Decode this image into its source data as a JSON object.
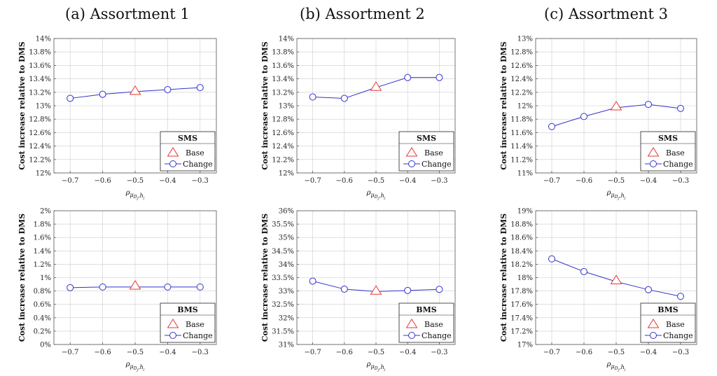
{
  "titles": [
    "(a) Assortment 1",
    "(b) Assortment 2",
    "(c) Assortment 3"
  ],
  "colors": {
    "base": "#e53935",
    "change": "#3333cc",
    "grid": "#cccccc",
    "axis": "#555555"
  },
  "chart_data": [
    {
      "type": "line",
      "panel": "a-top",
      "ylabel": "Cost increase relative to DMS",
      "xlabel": "ρ_{μ_{D_j},h_j}",
      "x": [
        -0.7,
        -0.6,
        -0.5,
        -0.4,
        -0.3
      ],
      "xticks": [
        "−0.7",
        "−0.6",
        "−0.5",
        "−0.4",
        "−0.3"
      ],
      "ylim": [
        12,
        14
      ],
      "yticks": [
        "12%",
        "12.2%",
        "12.4%",
        "12.6%",
        "12.8%",
        "13%",
        "13.2%",
        "13.4%",
        "13.6%",
        "13.8%",
        "14%"
      ],
      "grid": true,
      "legend": {
        "title": "SMS",
        "base_label": "Base",
        "change_label": "Change",
        "position": "bottom-right"
      },
      "series": [
        {
          "name": "Change",
          "values": [
            13.11,
            13.17,
            13.21,
            13.24,
            13.27
          ]
        }
      ],
      "base_point": {
        "x": -0.5,
        "y": 13.22
      }
    },
    {
      "type": "line",
      "panel": "b-top",
      "ylabel": "Cost increase relative to DMS",
      "xlabel": "ρ_{μ_{D_j},h_j}",
      "x": [
        -0.7,
        -0.6,
        -0.5,
        -0.4,
        -0.3
      ],
      "xticks": [
        "−0.7",
        "−0.6",
        "−0.5",
        "−0.4",
        "−0.3"
      ],
      "ylim": [
        12,
        14
      ],
      "yticks": [
        "12%",
        "12.2%",
        "12.4%",
        "12.6%",
        "12.8%",
        "13%",
        "13.2%",
        "13.4%",
        "13.6%",
        "13.8%",
        "14%"
      ],
      "grid": true,
      "legend": {
        "title": "SMS",
        "base_label": "Base",
        "change_label": "Change",
        "position": "bottom-right"
      },
      "series": [
        {
          "name": "Change",
          "values": [
            13.13,
            13.11,
            13.27,
            13.42,
            13.42
          ]
        }
      ],
      "base_point": {
        "x": -0.5,
        "y": 13.28
      }
    },
    {
      "type": "line",
      "panel": "c-top",
      "ylabel": "Cost increase relative to DMS",
      "xlabel": "ρ_{μ_{D_j},h_j}",
      "x": [
        -0.7,
        -0.6,
        -0.5,
        -0.4,
        -0.3
      ],
      "xticks": [
        "−0.7",
        "−0.6",
        "−0.5",
        "−0.4",
        "−0.3"
      ],
      "ylim": [
        11,
        13
      ],
      "yticks": [
        "11%",
        "11.2%",
        "11.4%",
        "11.6%",
        "11.8%",
        "12%",
        "12.2%",
        "12.4%",
        "12.6%",
        "12.8%",
        "13%"
      ],
      "grid": true,
      "legend": {
        "title": "SMS",
        "base_label": "Base",
        "change_label": "Change",
        "position": "bottom-right"
      },
      "series": [
        {
          "name": "Change",
          "values": [
            11.69,
            11.84,
            11.97,
            12.02,
            11.96
          ]
        }
      ],
      "base_point": {
        "x": -0.5,
        "y": 11.99
      }
    },
    {
      "type": "line",
      "panel": "a-bottom",
      "ylabel": "Cost increase relative to DMS",
      "xlabel": "ρ_{μ_{D_j},h_j}",
      "x": [
        -0.7,
        -0.6,
        -0.5,
        -0.4,
        -0.3
      ],
      "xticks": [
        "−0.7",
        "−0.6",
        "−0.5",
        "−0.4",
        "−0.3"
      ],
      "ylim": [
        0,
        2
      ],
      "yticks": [
        "0%",
        "0.2%",
        "0.4%",
        "0.6%",
        "0.8%",
        "1%",
        "1.2%",
        "1.4%",
        "1.6%",
        "1.8%",
        "2%"
      ],
      "grid": true,
      "legend": {
        "title": "BMS",
        "base_label": "Base",
        "change_label": "Change",
        "position": "bottom-right"
      },
      "series": [
        {
          "name": "Change",
          "values": [
            0.85,
            0.86,
            0.86,
            0.86,
            0.86
          ]
        }
      ],
      "base_point": {
        "x": -0.5,
        "y": 0.88
      }
    },
    {
      "type": "line",
      "panel": "b-bottom",
      "ylabel": "Cost increase relative to DMS",
      "xlabel": "ρ_{μ_{D_j},h_j}",
      "x": [
        -0.7,
        -0.6,
        -0.5,
        -0.4,
        -0.3
      ],
      "xticks": [
        "−0.7",
        "−0.6",
        "−0.5",
        "−0.4",
        "−0.3"
      ],
      "ylim": [
        31,
        36
      ],
      "yticks": [
        "31%",
        "31.5%",
        "32%",
        "32.5%",
        "33%",
        "33.5%",
        "34%",
        "34.5%",
        "35%",
        "35.5%",
        "36%"
      ],
      "grid": true,
      "legend": {
        "title": "BMS",
        "base_label": "Base",
        "change_label": "Change",
        "position": "bottom-right"
      },
      "series": [
        {
          "name": "Change",
          "values": [
            33.37,
            33.07,
            32.98,
            33.02,
            33.06
          ]
        }
      ],
      "base_point": {
        "x": -0.5,
        "y": 33.01
      }
    },
    {
      "type": "line",
      "panel": "c-bottom",
      "ylabel": "Cost increase relative to DMS",
      "xlabel": "ρ_{μ_{D_j},h_j}",
      "x": [
        -0.7,
        -0.6,
        -0.5,
        -0.4,
        -0.3
      ],
      "xticks": [
        "−0.7",
        "−0.6",
        "−0.5",
        "−0.4",
        "−0.3"
      ],
      "ylim": [
        17,
        19
      ],
      "yticks": [
        "17%",
        "17.2%",
        "17.4%",
        "17.6%",
        "17.8%",
        "18%",
        "18.2%",
        "18.4%",
        "18.6%",
        "18.8%",
        "19%"
      ],
      "grid": true,
      "legend": {
        "title": "BMS",
        "base_label": "Base",
        "change_label": "Change",
        "position": "bottom-right"
      },
      "series": [
        {
          "name": "Change",
          "values": [
            18.28,
            18.09,
            17.94,
            17.82,
            17.72
          ]
        }
      ],
      "base_point": {
        "x": -0.5,
        "y": 17.96
      }
    }
  ]
}
